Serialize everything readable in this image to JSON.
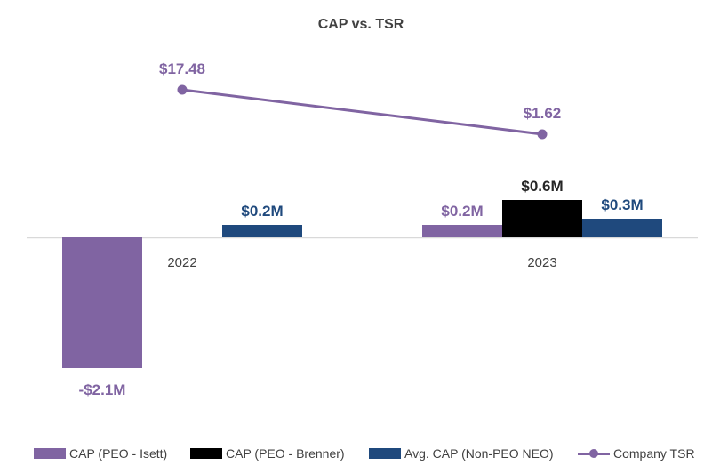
{
  "chart_data": {
    "type": "bar",
    "title": "CAP vs. TSR",
    "categories": [
      "2022",
      "2023"
    ],
    "units": "$M",
    "series": [
      {
        "name": "CAP (PEO - Isett)",
        "color": "#8064a2",
        "label_color": "#8064a2",
        "values": [
          -2.1,
          0.2
        ],
        "labels": [
          "-$2.1M",
          "$0.2M"
        ]
      },
      {
        "name": "CAP (PEO - Brenner)",
        "color": "#000000",
        "label_color": "#262626",
        "values": [
          null,
          0.6
        ],
        "labels": [
          "",
          "$0.6M"
        ]
      },
      {
        "name": "Avg. CAP (Non-PEO NEO)",
        "color": "#1f497d",
        "label_color": "#1f497d",
        "values": [
          0.2,
          0.3
        ],
        "labels": [
          "$0.2M",
          "$0.3M"
        ]
      }
    ],
    "line_series": {
      "name": "Company TSR",
      "type": "line",
      "color": "#8064a2",
      "values": [
        17.48,
        1.62
      ],
      "labels": [
        "$17.48",
        "$1.62"
      ]
    },
    "xlabel": "",
    "ylabel": "",
    "grid": false,
    "legend_position": "bottom"
  }
}
